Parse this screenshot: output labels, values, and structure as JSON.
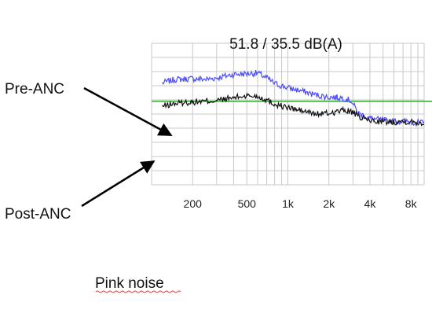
{
  "chart_data": {
    "type": "line",
    "title": "51.8 / 35.5 dB(A)",
    "x_scale": "log",
    "xlim": [
      100,
      10000
    ],
    "ylim": [
      0,
      10
    ],
    "grid": true,
    "x_ticks": [
      {
        "value": 200,
        "label": "200"
      },
      {
        "value": 500,
        "label": "500"
      },
      {
        "value": 1000,
        "label": "1k"
      },
      {
        "value": 2000,
        "label": "2k"
      },
      {
        "value": 4000,
        "label": "4k"
      },
      {
        "value": 8000,
        "label": "8k"
      }
    ],
    "reference_line": {
      "y": 5.9,
      "color": "#1fa01f"
    },
    "series": [
      {
        "label": "Pre-ANC",
        "color": "#4b4bff",
        "x": [
          120,
          150,
          200,
          250,
          300,
          400,
          500,
          600,
          700,
          800,
          1000,
          1300,
          1600,
          2000,
          2500,
          2900,
          3300,
          4000,
          5000,
          6000,
          7000,
          8000,
          9000,
          10000
        ],
        "y": [
          7.2,
          7.45,
          7.5,
          7.45,
          7.55,
          7.8,
          7.85,
          7.9,
          7.55,
          7.15,
          6.85,
          6.6,
          6.35,
          6.2,
          6.15,
          5.95,
          5.05,
          4.7,
          4.55,
          4.5,
          4.5,
          4.45,
          4.4,
          4.35
        ]
      },
      {
        "label": "Post-ANC",
        "color": "#111111",
        "x": [
          120,
          150,
          200,
          250,
          300,
          400,
          500,
          600,
          700,
          800,
          1000,
          1300,
          1600,
          2000,
          2500,
          2900,
          3300,
          4000,
          5000,
          6000,
          7000,
          8000,
          9000,
          10000
        ],
        "y": [
          5.55,
          5.75,
          5.85,
          5.9,
          5.95,
          6.15,
          6.3,
          6.25,
          6.0,
          5.7,
          5.45,
          5.2,
          5.0,
          5.05,
          5.25,
          5.2,
          4.8,
          4.55,
          4.45,
          4.45,
          4.5,
          4.45,
          4.4,
          4.35
        ]
      }
    ],
    "annotations": [
      {
        "text": "Pre-ANC",
        "target_series": "Pre-ANC"
      },
      {
        "text": "Post-ANC",
        "target_series": "Post-ANC"
      }
    ],
    "caption": "Pink noise"
  }
}
